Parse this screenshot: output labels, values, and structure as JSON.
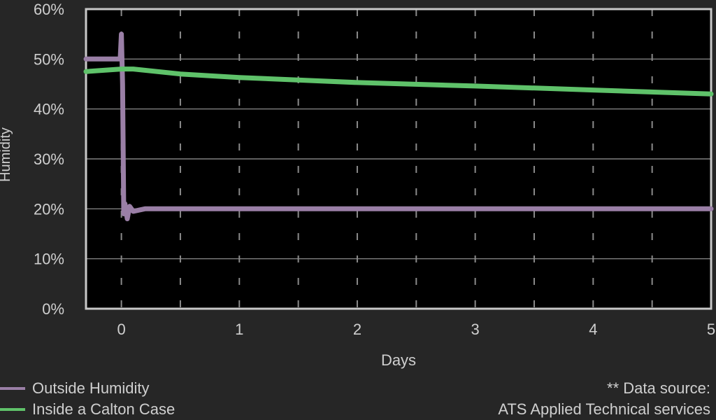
{
  "chart_data": {
    "type": "line",
    "xlabel": "Days",
    "ylabel": "Humidity",
    "xlim": [
      -0.3,
      5
    ],
    "ylim": [
      0,
      60
    ],
    "x_ticks": [
      "0",
      "1",
      "2",
      "3",
      "4",
      "5"
    ],
    "y_ticks": [
      "0%",
      "10%",
      "20%",
      "30%",
      "40%",
      "50%",
      "60%"
    ],
    "grid": true,
    "legend_position": "bottom-left",
    "series": [
      {
        "name": "Outside Humidity",
        "color": "#9a7fa6",
        "x": [
          -0.3,
          -0.01,
          0.0,
          0.01,
          0.02,
          0.03,
          0.05,
          0.07,
          0.1,
          0.2,
          0.5,
          1.0,
          2.0,
          3.0,
          4.0,
          5.0
        ],
        "y": [
          50,
          50,
          55,
          45,
          19,
          21,
          18,
          20.5,
          19.5,
          20,
          20,
          20,
          20,
          20,
          20,
          20
        ]
      },
      {
        "name": "Inside a Calton Case",
        "color": "#5fc26a",
        "x": [
          -0.3,
          0.0,
          0.1,
          0.5,
          1.0,
          2.0,
          3.0,
          4.0,
          5.0
        ],
        "y": [
          47.5,
          48,
          48,
          47,
          46.3,
          45.3,
          44.6,
          43.8,
          43
        ]
      }
    ]
  },
  "footer": {
    "source_line1": "** Data source:",
    "source_line2": "ATS Applied Technical services"
  }
}
